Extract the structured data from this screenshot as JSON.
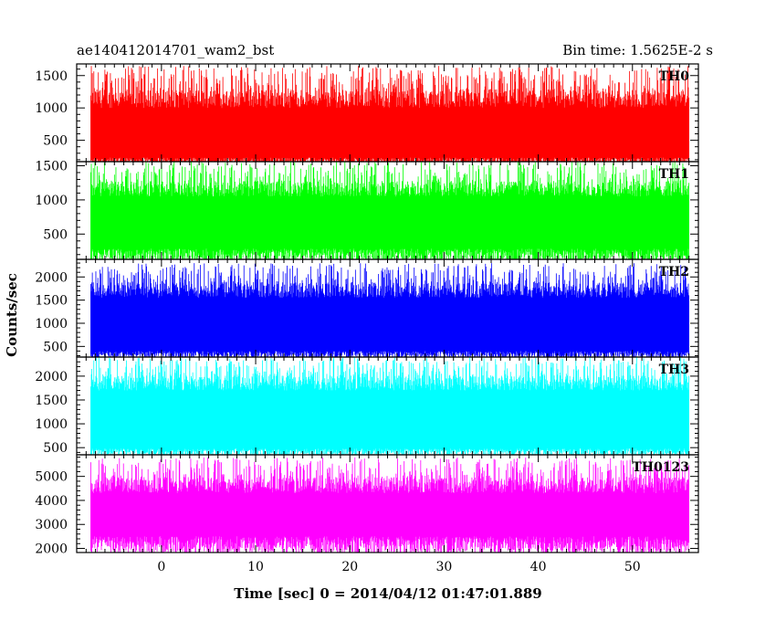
{
  "chart_data": {
    "type": "line",
    "title": "ae140412014701_wam2_bst",
    "bin_label": "Bin time: 1.5625E-2 s",
    "xlabel": "Time [sec] 0 = 2014/04/12 01:47:01.889",
    "ylabel": "Counts/sec",
    "xlim": [
      -9,
      57
    ],
    "x_data_range": [
      -7.5,
      56
    ],
    "x_ticks": [
      0,
      10,
      20,
      30,
      40,
      50
    ],
    "grid": false,
    "panels": [
      {
        "name": "TH0",
        "color": "#ff0000",
        "ylim": [
          170,
          1680
        ],
        "y_ticks": [
          500,
          1000,
          1500
        ],
        "baseline_low": 180,
        "baseline_high": 1000,
        "peak_max": 1650,
        "min_floor": 120
      },
      {
        "name": "TH1",
        "color": "#00ff00",
        "ylim": [
          130,
          1560
        ],
        "y_ticks": [
          500,
          1000,
          1500
        ],
        "baseline_low": 200,
        "baseline_high": 1050,
        "peak_max": 1560,
        "min_floor": 100
      },
      {
        "name": "TH2",
        "color": "#0000ff",
        "ylim": [
          270,
          2380
        ],
        "y_ticks": [
          500,
          1000,
          1500,
          2000
        ],
        "baseline_low": 330,
        "baseline_high": 1550,
        "peak_max": 2300,
        "min_floor": 250
      },
      {
        "name": "TH3",
        "color": "#00ffff",
        "ylim": [
          350,
          2400
        ],
        "y_ticks": [
          500,
          1000,
          1500,
          2000
        ],
        "baseline_low": 420,
        "baseline_high": 1700,
        "peak_max": 2400,
        "min_floor": 350
      },
      {
        "name": "TH0123",
        "color": "#ff00ff",
        "ylim": [
          1830,
          5900
        ],
        "y_ticks": [
          2000,
          3000,
          4000,
          5000
        ],
        "baseline_low": 2200,
        "baseline_high": 4300,
        "peak_max": 5800,
        "min_floor": 1850
      }
    ]
  }
}
